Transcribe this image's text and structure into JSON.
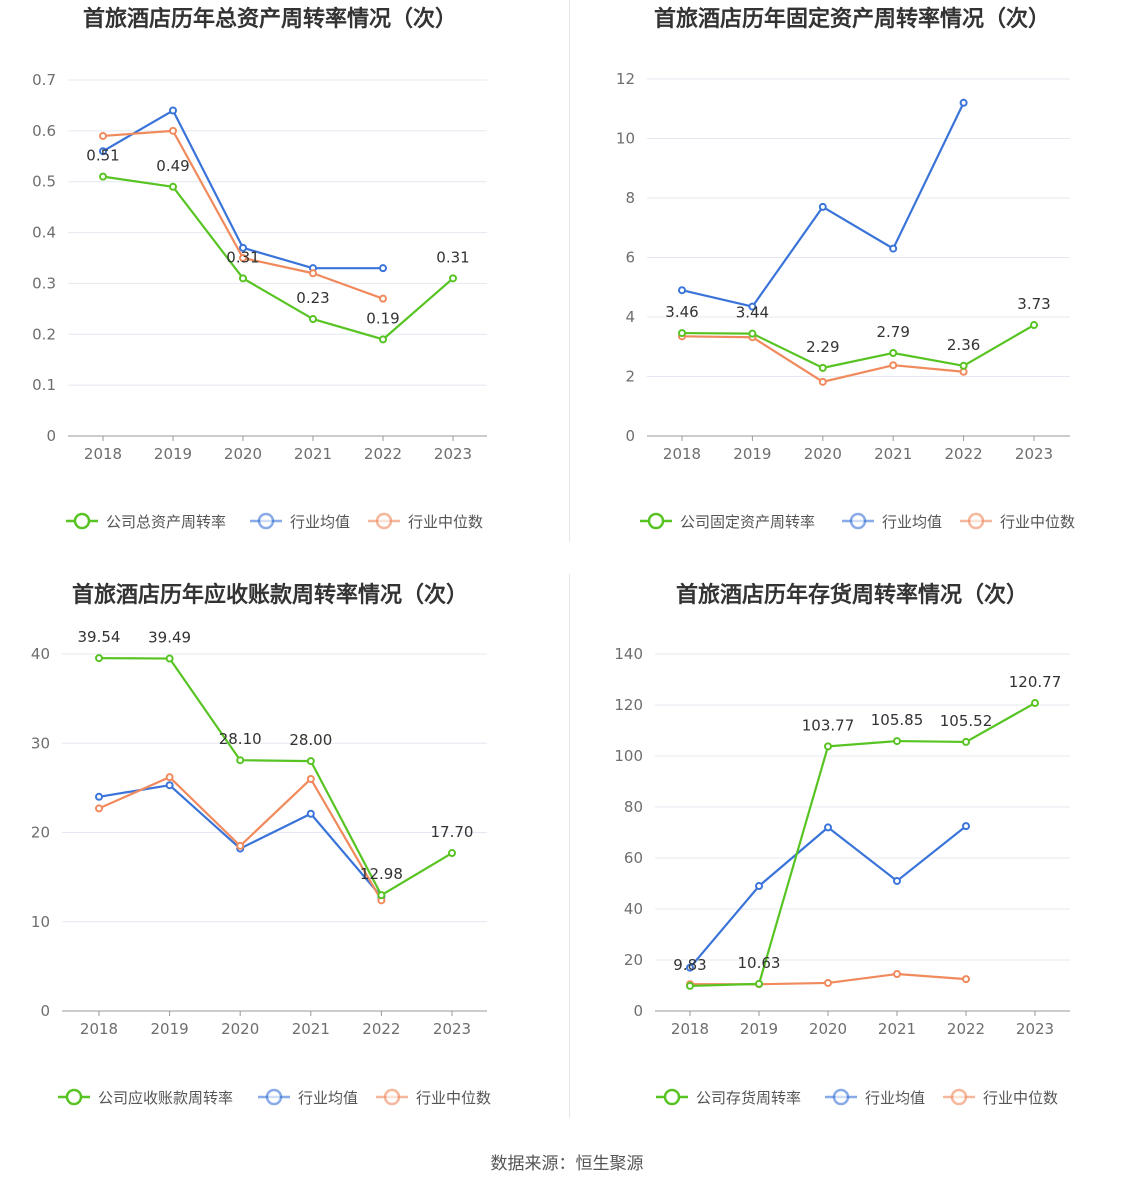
{
  "source": "数据来源：恒生聚源",
  "colors": {
    "company": "#58c423",
    "avg": "#3a74d9",
    "median": "#f08a5d"
  },
  "chart_data": [
    {
      "type": "line",
      "title": "首旅酒店历年总资产周转率情况（次）",
      "categories": [
        "2018",
        "2019",
        "2020",
        "2021",
        "2022",
        "2023"
      ],
      "ylim": [
        0,
        0.7
      ],
      "yticks": [
        0,
        0.1,
        0.2,
        0.3,
        0.4,
        0.5,
        0.6,
        0.7
      ],
      "ytick_labels": [
        "0",
        "0.1",
        "0.2",
        "0.3",
        "0.4",
        "0.5",
        "0.6",
        "0.7"
      ],
      "grid": true,
      "legend_position": "bottom",
      "series": [
        {
          "name": "公司总资产周转率",
          "values": [
            0.51,
            0.49,
            0.31,
            0.23,
            0.19,
            0.31
          ],
          "labels": [
            "0.51",
            "0.49",
            "0.31",
            "0.23",
            "0.19",
            "0.31"
          ]
        },
        {
          "name": "行业均值",
          "values": [
            0.56,
            0.64,
            0.37,
            0.33,
            0.33,
            null
          ]
        },
        {
          "name": "行业中位数",
          "values": [
            0.59,
            0.6,
            0.35,
            0.32,
            0.27,
            null
          ]
        }
      ]
    },
    {
      "type": "line",
      "title": "首旅酒店历年固定资产周转率情况（次）",
      "categories": [
        "2018",
        "2019",
        "2020",
        "2021",
        "2022",
        "2023"
      ],
      "ylim": [
        0,
        12
      ],
      "yticks": [
        0,
        2,
        4,
        6,
        8,
        10,
        12
      ],
      "ytick_labels": [
        "0",
        "2",
        "4",
        "6",
        "8",
        "10",
        "12"
      ],
      "grid": true,
      "legend_position": "bottom",
      "series": [
        {
          "name": "公司固定资产周转率",
          "values": [
            3.46,
            3.44,
            2.29,
            2.79,
            2.36,
            3.73
          ],
          "labels": [
            "3.46",
            "3.44",
            "2.29",
            "2.79",
            "2.36",
            "3.73"
          ]
        },
        {
          "name": "行业均值",
          "values": [
            4.9,
            4.35,
            7.7,
            6.3,
            11.2,
            null
          ]
        },
        {
          "name": "行业中位数",
          "values": [
            3.35,
            3.32,
            1.82,
            2.38,
            2.16,
            null
          ]
        }
      ]
    },
    {
      "type": "line",
      "title": "首旅酒店历年应收账款周转率情况（次）",
      "categories": [
        "2018",
        "2019",
        "2020",
        "2021",
        "2022",
        "2023"
      ],
      "ylim": [
        0,
        40
      ],
      "yticks": [
        0,
        10,
        20,
        30,
        40
      ],
      "ytick_labels": [
        "0",
        "10",
        "20",
        "30",
        "40"
      ],
      "grid": true,
      "legend_position": "bottom",
      "series": [
        {
          "name": "公司应收账款周转率",
          "values": [
            39.54,
            39.49,
            28.1,
            28.0,
            12.98,
            17.7
          ],
          "labels": [
            "39.54",
            "39.49",
            "28.10",
            "28.00",
            "12.98",
            "17.70"
          ]
        },
        {
          "name": "行业均值",
          "values": [
            24.0,
            25.3,
            18.2,
            22.1,
            12.8,
            null
          ]
        },
        {
          "name": "行业中位数",
          "values": [
            22.7,
            26.2,
            18.5,
            26.0,
            12.4,
            null
          ]
        }
      ]
    },
    {
      "type": "line",
      "title": "首旅酒店历年存货周转率情况（次）",
      "categories": [
        "2018",
        "2019",
        "2020",
        "2021",
        "2022",
        "2023"
      ],
      "ylim": [
        0,
        140
      ],
      "yticks": [
        0,
        20,
        40,
        60,
        80,
        100,
        120,
        140
      ],
      "ytick_labels": [
        "0",
        "20",
        "40",
        "60",
        "80",
        "100",
        "120",
        "140"
      ],
      "grid": true,
      "legend_position": "bottom",
      "series": [
        {
          "name": "公司存货周转率",
          "values": [
            9.83,
            10.63,
            103.77,
            105.85,
            105.52,
            120.77
          ],
          "labels": [
            "9.83",
            "10.63",
            "103.77",
            "105.85",
            "105.52",
            "120.77"
          ]
        },
        {
          "name": "行业均值",
          "values": [
            17.0,
            49.0,
            72.0,
            51.0,
            72.5,
            null
          ]
        },
        {
          "name": "行业中位数",
          "values": [
            10.5,
            10.5,
            11.0,
            14.5,
            12.5,
            null
          ]
        }
      ]
    }
  ]
}
